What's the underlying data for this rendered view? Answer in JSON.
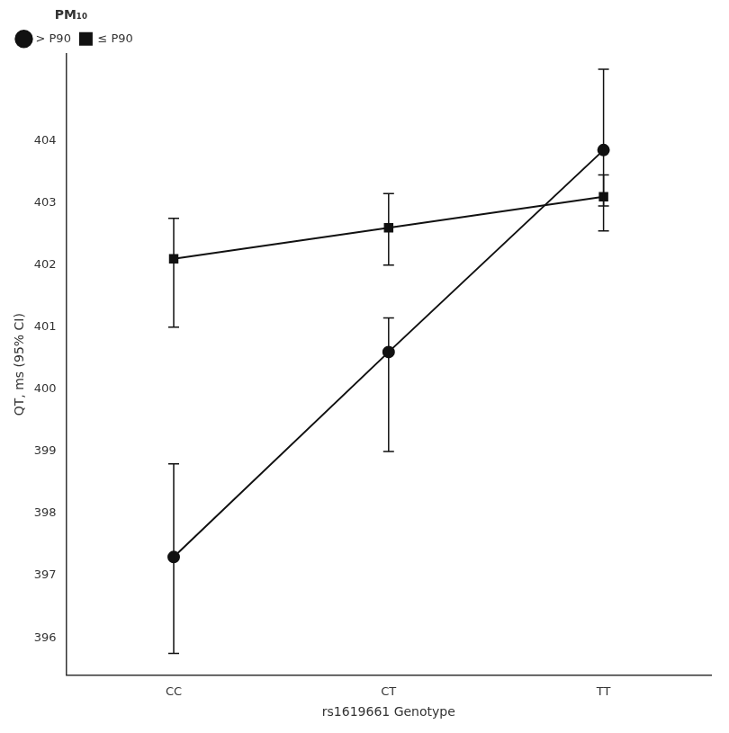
{
  "chart_data": {
    "type": "line",
    "categories": [
      "CC",
      "CT",
      "TT"
    ],
    "series": [
      {
        "name": "> P90",
        "color": "#111111",
        "marker": "circle",
        "values": [
          397.3,
          400.6,
          403.85
        ],
        "ci_lower": [
          395.75,
          399.0,
          402.55
        ],
        "ci_upper": [
          398.8,
          401.15,
          405.15
        ]
      },
      {
        "name": "≤ P90",
        "color": "#111111",
        "marker": "square",
        "values": [
          402.1,
          402.6,
          403.1
        ],
        "ci_lower": [
          401.0,
          402.0,
          402.95
        ],
        "ci_upper": [
          402.75,
          403.15,
          403.45
        ]
      }
    ],
    "xlabel": "rs1619661 Genotype",
    "ylabel": "QT, ms (95% CI)",
    "ylim": [
      395.4,
      405.4
    ],
    "yticks": [
      396,
      397,
      398,
      399,
      400,
      401,
      402,
      403,
      404
    ],
    "grid": false,
    "legend": "upper left",
    "legend_title": "PM₁₀"
  }
}
